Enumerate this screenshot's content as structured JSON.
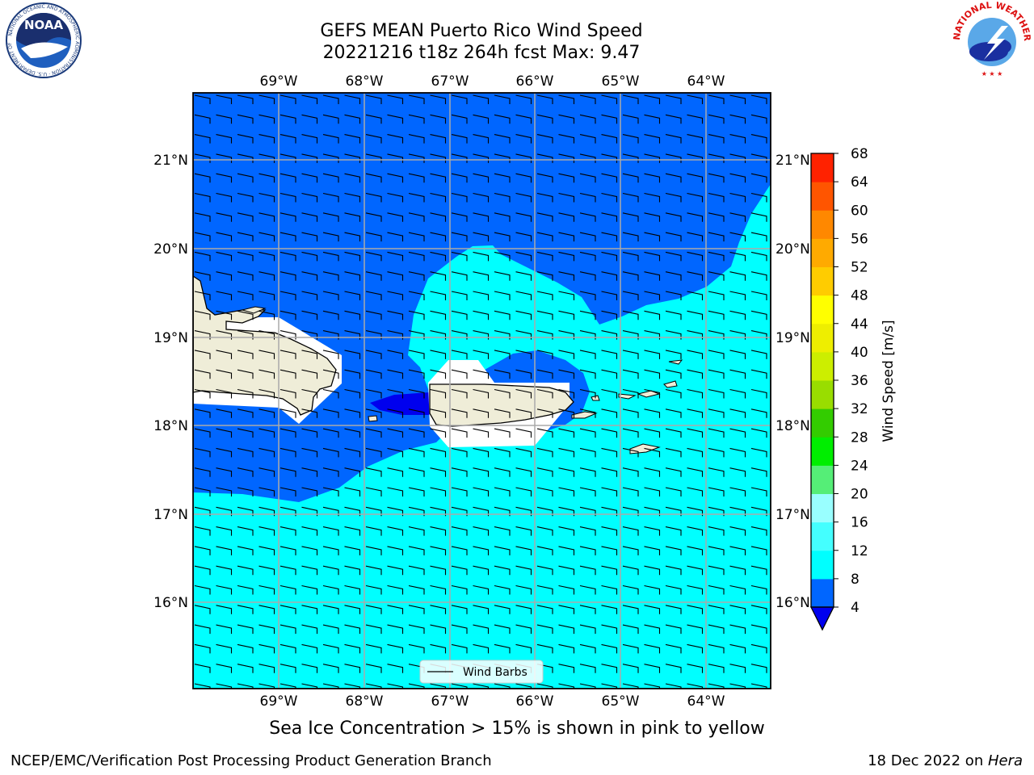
{
  "title": {
    "line1": "GEFS MEAN Puerto Rico Wind Speed",
    "line2": "20221216 t18z 264h fcst   Max: 9.47"
  },
  "axes": {
    "lon_labels": [
      "69°W",
      "68°W",
      "67°W",
      "66°W",
      "65°W",
      "64°W"
    ],
    "lat_labels_left": [
      "21°N",
      "20°N",
      "19°N",
      "18°N",
      "17°N",
      "16°N"
    ],
    "lat_labels_right": [
      "21°N",
      "20°N",
      "19°N",
      "18°N",
      "17°N",
      "16°N"
    ]
  },
  "legend": {
    "label": "Wind Barbs"
  },
  "colorbar": {
    "label": "Wind Speed [m/s]",
    "ticks": [
      "4",
      "8",
      "12",
      "16",
      "20",
      "24",
      "28",
      "32",
      "36",
      "40",
      "44",
      "48",
      "52",
      "56",
      "60",
      "64",
      "68"
    ],
    "colors": [
      "#0066ff",
      "#00ffff",
      "#44ffff",
      "#99ffff",
      "#55ee77",
      "#00ee00",
      "#33cc00",
      "#99dd00",
      "#ccee00",
      "#eeee00",
      "#ffff00",
      "#ffcc00",
      "#ffaa00",
      "#ff8800",
      "#ff5500",
      "#ff2200",
      "#ff0000"
    ],
    "under_color": "#0000ee"
  },
  "field_colors": {
    "band_4_8": "#0066ff",
    "band_8_12": "#00ffff",
    "below_4": "#0000ee",
    "land": "#efedd8",
    "masked": "#ffffff"
  },
  "caption": "Sea Ice Concentration > 15% is shown in pink to yellow",
  "credit": {
    "left": "NCEP/EMC/Verification Post Processing Product Generation Branch",
    "right_prefix": "18 Dec 2022 on ",
    "right_host": "Hera"
  },
  "logos": {
    "noaa": {
      "text": "NOAA",
      "ring_text": "NATIONAL OCEANIC AND ATMOSPHERIC ADMINISTRATION · U.S. DEPARTMENT OF COMMERCE"
    },
    "nws": {
      "ring_text": "NATIONAL WEATHER SERVICE"
    }
  }
}
